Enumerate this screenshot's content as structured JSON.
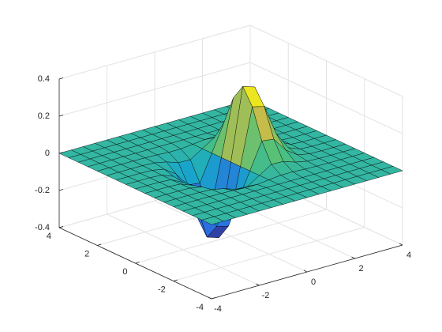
{
  "chart_data": {
    "type": "surface",
    "x": [
      -4,
      -3.5,
      -3,
      -2.5,
      -2,
      -1.5,
      -1,
      -0.5,
      0,
      0.5,
      1,
      1.5,
      2,
      2.5,
      3,
      3.5,
      4
    ],
    "y": [
      -4,
      -3.5,
      -3,
      -2.5,
      -2,
      -1.5,
      -1,
      -0.5,
      0,
      0.5,
      1,
      1.5,
      2,
      2.5,
      3,
      3.5,
      4
    ],
    "z": [
      [
        0,
        0,
        0,
        0,
        0,
        0,
        0,
        0,
        0,
        0,
        0,
        0,
        0,
        0,
        0,
        0,
        0
      ],
      [
        0,
        0,
        0,
        0,
        0,
        0,
        0,
        0,
        0,
        0,
        0,
        0,
        0,
        0,
        0,
        0,
        0
      ],
      [
        0,
        0,
        0,
        0,
        0,
        0,
        0,
        0,
        0,
        0,
        0,
        0,
        0,
        0,
        0,
        0,
        0
      ],
      [
        0,
        0,
        0,
        0,
        0,
        0,
        0,
        0,
        0,
        0,
        0,
        0,
        0,
        0,
        0,
        0,
        0
      ],
      [
        0,
        0,
        0,
        0,
        -0.001,
        -0.003,
        -0.007,
        -0.007,
        0,
        0.007,
        0.007,
        0.003,
        0.001,
        0,
        0,
        0,
        0
      ],
      [
        0,
        0,
        0,
        -0.001,
        -0.004,
        -0.017,
        -0.039,
        -0.041,
        0,
        0.041,
        0.039,
        0.017,
        0.004,
        0.001,
        0,
        0,
        0
      ],
      [
        0,
        0,
        0,
        -0.002,
        -0.014,
        -0.058,
        -0.135,
        -0.143,
        0,
        0.143,
        0.135,
        0.058,
        0.014,
        0.002,
        0,
        0,
        0
      ],
      [
        0,
        0,
        0,
        -0.004,
        -0.029,
        -0.123,
        -0.287,
        -0.303,
        0,
        0.303,
        0.287,
        0.123,
        0.029,
        0.004,
        0,
        0,
        0
      ],
      [
        0,
        0,
        0,
        -0.005,
        -0.037,
        -0.158,
        -0.368,
        -0.389,
        0,
        0.389,
        0.368,
        0.158,
        0.037,
        0.005,
        0,
        0,
        0
      ],
      [
        0,
        0,
        0,
        -0.004,
        -0.029,
        -0.123,
        -0.287,
        -0.303,
        0,
        0.303,
        0.287,
        0.123,
        0.029,
        0.004,
        0,
        0,
        0
      ],
      [
        0,
        0,
        0,
        -0.002,
        -0.014,
        -0.058,
        -0.135,
        -0.143,
        0,
        0.143,
        0.135,
        0.058,
        0.014,
        0.002,
        0,
        0,
        0
      ],
      [
        0,
        0,
        0,
        -0.001,
        -0.004,
        -0.017,
        -0.039,
        -0.041,
        0,
        0.041,
        0.039,
        0.017,
        0.004,
        0.001,
        0,
        0,
        0
      ],
      [
        0,
        0,
        0,
        0,
        -0.001,
        -0.003,
        -0.007,
        -0.007,
        0,
        0.007,
        0.007,
        0.003,
        0.001,
        0,
        0,
        0,
        0
      ],
      [
        0,
        0,
        0,
        0,
        0,
        0,
        0,
        0,
        0,
        0,
        0,
        0,
        0,
        0,
        0,
        0,
        0
      ],
      [
        0,
        0,
        0,
        0,
        0,
        0,
        0,
        0,
        0,
        0,
        0,
        0,
        0,
        0,
        0,
        0,
        0
      ],
      [
        0,
        0,
        0,
        0,
        0,
        0,
        0,
        0,
        0,
        0,
        0,
        0,
        0,
        0,
        0,
        0,
        0
      ],
      [
        0,
        0,
        0,
        0,
        0,
        0,
        0,
        0,
        0,
        0,
        0,
        0,
        0,
        0,
        0,
        0,
        0
      ]
    ],
    "xlim": [
      -4,
      4
    ],
    "ylim": [
      -4,
      4
    ],
    "zlim": [
      -0.4,
      0.4
    ],
    "xticks": [
      -4,
      -2,
      0,
      2,
      4
    ],
    "yticks": [
      -4,
      -2,
      0,
      2,
      4
    ],
    "zticks": [
      -0.4,
      -0.2,
      0,
      0.2,
      0.4
    ],
    "grid": true,
    "colormap": [
      "#352a87",
      "#2c6ee0",
      "#17a9c9",
      "#4fc27a",
      "#d3bb43",
      "#f9fb0e"
    ]
  }
}
